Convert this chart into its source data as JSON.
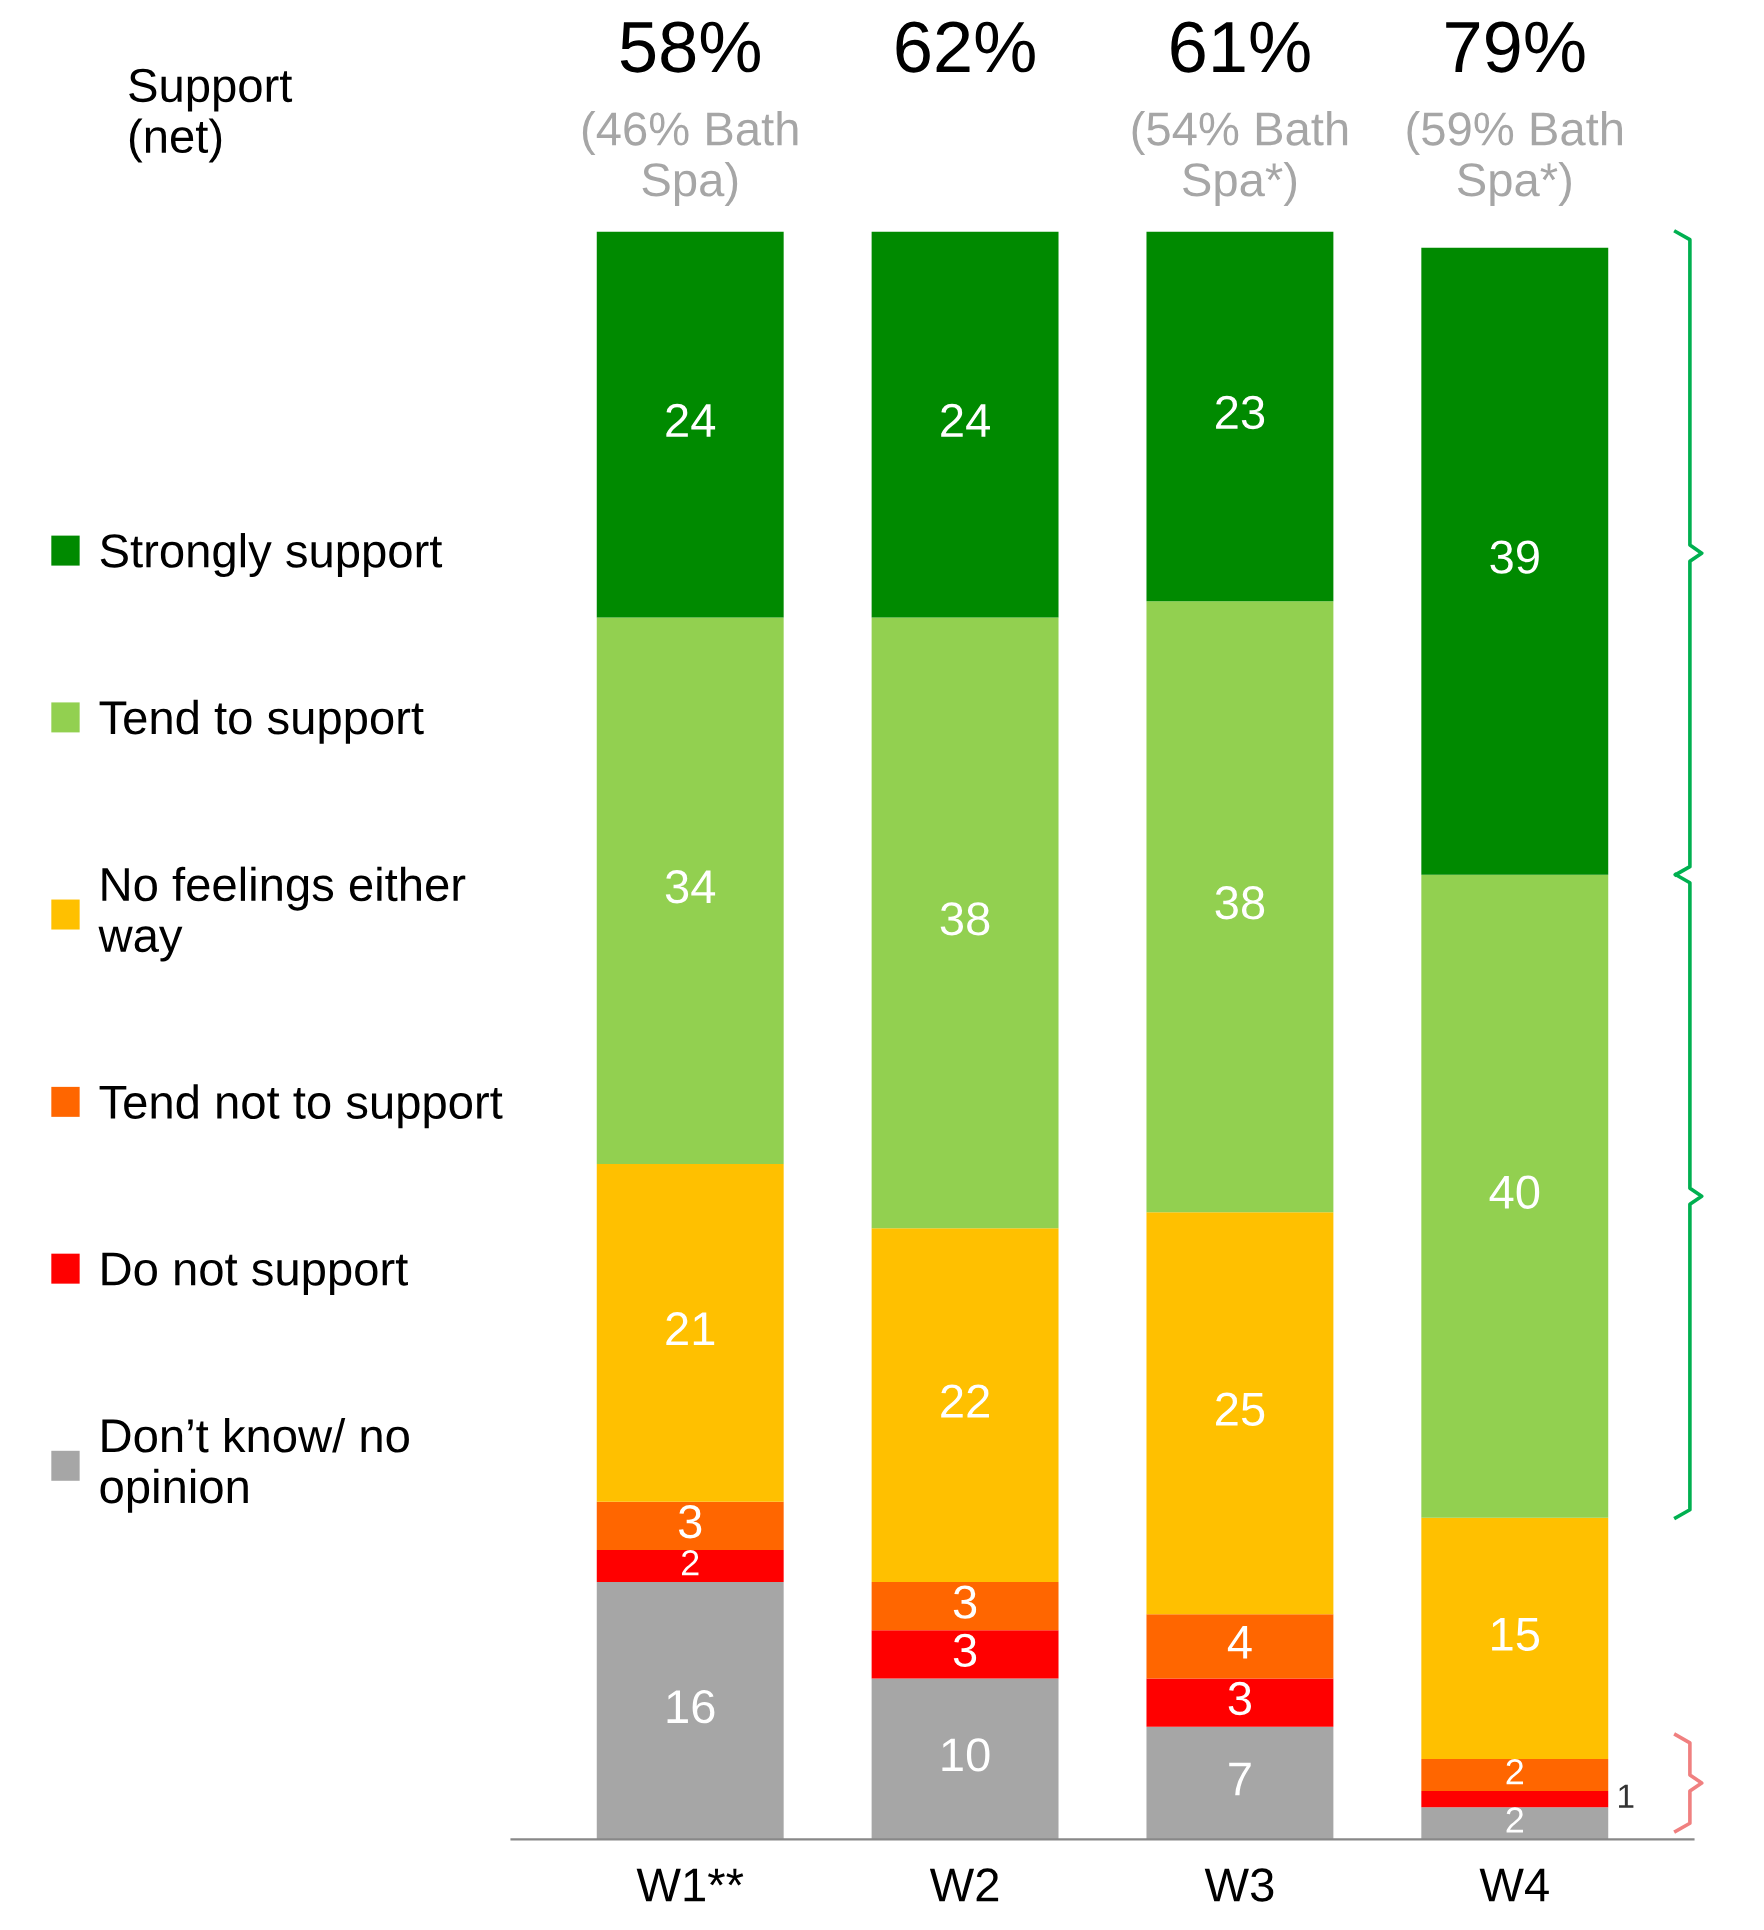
{
  "chart_data": {
    "type": "bar",
    "stacked": true,
    "data_labels": true,
    "legend": "left",
    "categories": [
      "W1**",
      "W2",
      "W3",
      "W4"
    ],
    "series": [
      {
        "name": "Don’t know/ no\nopinion",
        "color": "#a6a6a6",
        "values": [
          16,
          10,
          7,
          2
        ]
      },
      {
        "name": "Do not support",
        "color": "#ff0000",
        "values": [
          2,
          3,
          3,
          1
        ]
      },
      {
        "name": "Tend not to support",
        "color": "#ff6600",
        "values": [
          3,
          3,
          4,
          2
        ]
      },
      {
        "name": "No feelings either\nway",
        "color": "#ffc000",
        "values": [
          21,
          22,
          25,
          15
        ]
      },
      {
        "name": "Tend to support",
        "color": "#92d050",
        "values": [
          34,
          38,
          38,
          40
        ]
      },
      {
        "name": "Strongly support",
        "color": "#008a00",
        "values": [
          24,
          24,
          23,
          39
        ]
      }
    ],
    "annotations": [
      "Support\n(net)",
      "58%",
      "(46% Bath\nSpa)",
      "62%",
      "61%",
      "(54% Bath\nSpa*)",
      "79%",
      "(59% Bath\nSpa*)"
    ]
  }
}
